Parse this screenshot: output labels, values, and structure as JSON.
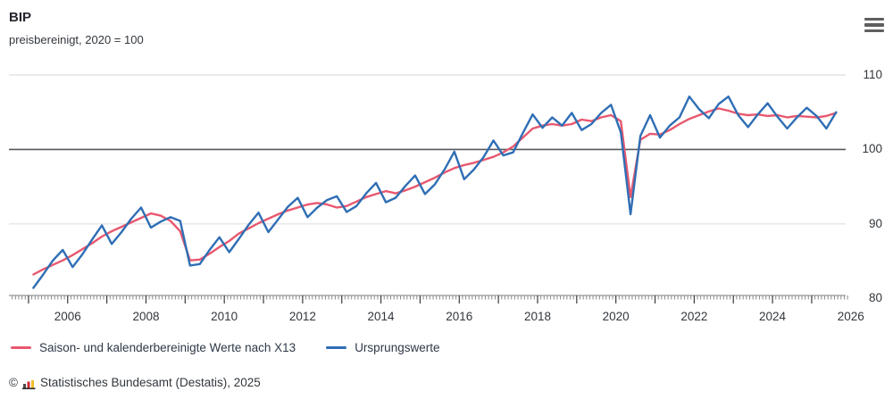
{
  "header": {
    "title": "BIP",
    "subtitle": "preisbereinigt, 2020 = 100",
    "menu_icon": "hamburger-menu-icon"
  },
  "footer": {
    "copyright_symbol": "©",
    "source_icon": "destatis-bars-icon",
    "source_text": "Statistisches Bundesamt (Destatis), 2025"
  },
  "colors": {
    "adjusted_line": "#e8586f",
    "original_line": "#2f6eb4",
    "grid_light": "#e4e4e7",
    "baseline_100": "#55585e",
    "axis_text": "#32373c",
    "tick_minor": "#8a8a8a",
    "tick_major": "#3a3a3a"
  },
  "chart_data": {
    "type": "line",
    "title": "BIP",
    "subtitle": "preisbereinigt, 2020 = 100",
    "x_unit": "quarterly, 2005 Q1 - 2025 Q3",
    "x_start_year": 2005,
    "x_start_quarter": 1,
    "x_tick_labels": [
      "2006",
      "2008",
      "2010",
      "2012",
      "2014",
      "2016",
      "2018",
      "2020",
      "2022",
      "2024",
      "2026"
    ],
    "y_ticks": [
      80,
      90,
      100,
      110
    ],
    "ylim": [
      80,
      110
    ],
    "reference_line": 100,
    "grid": "horizontal-only",
    "legend_position": "bottom-left",
    "series": [
      {
        "name": "Saison- und kalenderbereinigte Werte nach X13",
        "color": "#e8586f",
        "values": [
          83.2,
          83.9,
          84.5,
          85.1,
          85.8,
          86.6,
          87.4,
          88.3,
          89.0,
          89.6,
          90.2,
          90.8,
          91.4,
          91.1,
          90.4,
          89.0,
          85.1,
          85.2,
          86.0,
          86.9,
          87.7,
          88.7,
          89.4,
          90.1,
          90.7,
          91.3,
          91.8,
          92.2,
          92.6,
          92.8,
          92.6,
          92.2,
          92.4,
          93.0,
          93.6,
          94.0,
          94.4,
          94.1,
          94.5,
          95.0,
          95.6,
          96.2,
          96.9,
          97.5,
          97.9,
          98.2,
          98.6,
          99.0,
          99.6,
          100.4,
          101.6,
          102.8,
          103.2,
          103.4,
          103.2,
          103.4,
          104.0,
          103.8,
          104.3,
          104.6,
          103.8,
          93.6,
          101.3,
          102.1,
          102.0,
          102.6,
          103.4,
          104.1,
          104.6,
          105.1,
          105.5,
          105.2,
          104.8,
          104.6,
          104.7,
          104.5,
          104.6,
          104.3,
          104.5,
          104.4,
          104.3,
          104.5,
          104.9
        ]
      },
      {
        "name": "Ursprungswerte",
        "color": "#2f6eb4",
        "values": [
          81.4,
          83.2,
          85.1,
          86.5,
          84.2,
          85.9,
          87.9,
          89.8,
          87.3,
          88.9,
          90.7,
          92.2,
          89.5,
          90.3,
          90.9,
          90.4,
          84.4,
          84.6,
          86.5,
          88.2,
          86.2,
          88.0,
          89.9,
          91.5,
          88.9,
          90.6,
          92.3,
          93.5,
          90.9,
          92.2,
          93.2,
          93.7,
          91.6,
          92.4,
          94.1,
          95.5,
          92.9,
          93.5,
          95.1,
          96.5,
          94.0,
          95.3,
          97.3,
          99.7,
          96.0,
          97.3,
          99.0,
          101.2,
          99.2,
          99.6,
          102.2,
          104.7,
          102.9,
          104.3,
          103.2,
          104.9,
          102.6,
          103.4,
          104.9,
          106.0,
          102.3,
          91.3,
          101.8,
          104.6,
          101.6,
          103.2,
          104.3,
          107.1,
          105.4,
          104.2,
          106.1,
          107.1,
          104.6,
          103.0,
          104.7,
          106.2,
          104.4,
          102.8,
          104.3,
          105.6,
          104.5,
          102.8,
          105.0
        ]
      }
    ]
  }
}
